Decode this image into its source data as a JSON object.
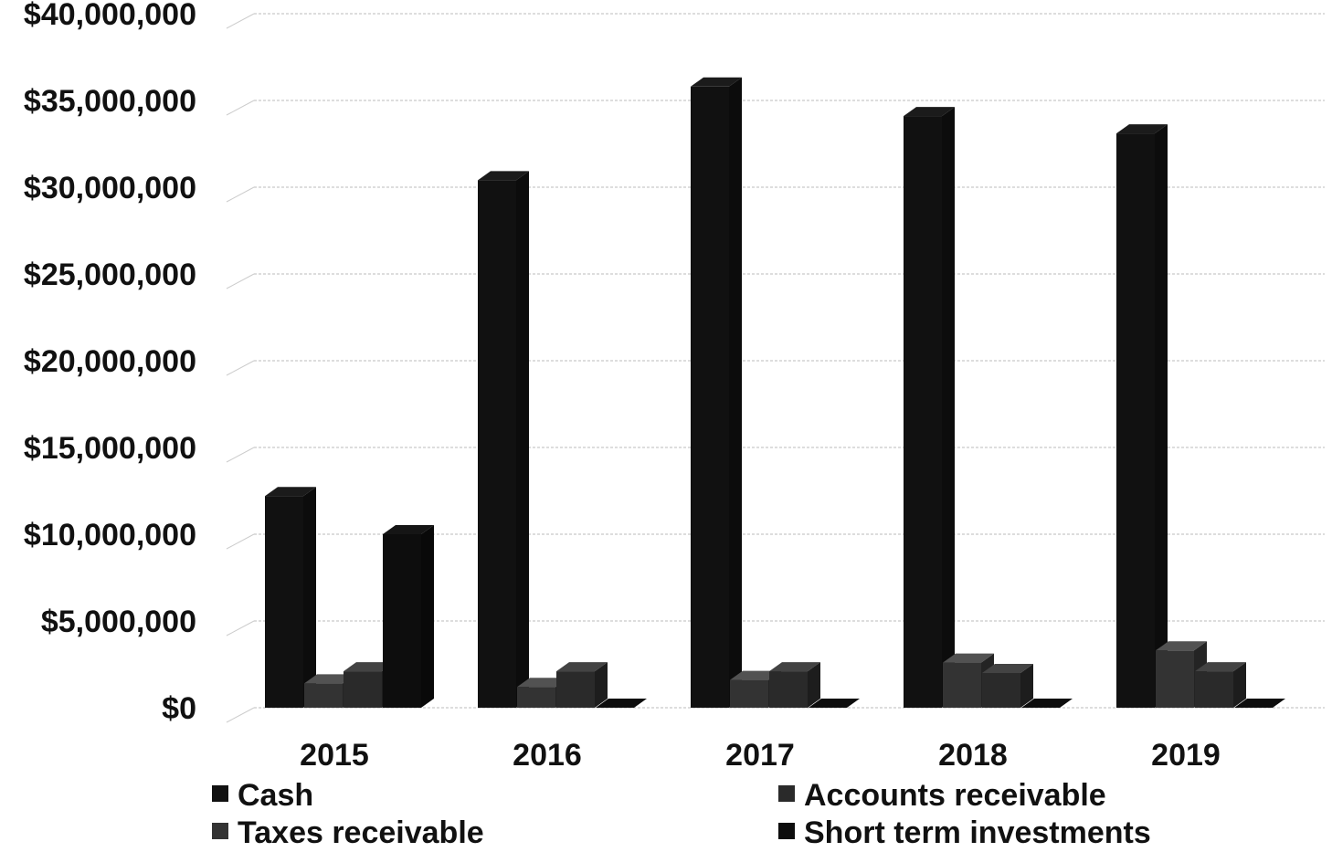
{
  "chart_data": {
    "type": "bar",
    "title": "",
    "xlabel": "",
    "ylabel": "",
    "categories": [
      "2015",
      "2016",
      "2017",
      "2018",
      "2019"
    ],
    "series": [
      {
        "name": "Cash",
        "color": "#111111",
        "values": [
          12200000,
          30400000,
          35800000,
          34100000,
          33100000
        ]
      },
      {
        "name": "Taxes receivable",
        "color": "#333333",
        "values": [
          1400000,
          1200000,
          1600000,
          2600000,
          3300000
        ]
      },
      {
        "name": "Accounts receivable",
        "color": "#2a2a2a",
        "values": [
          2100000,
          2100000,
          2100000,
          2000000,
          2100000
        ]
      },
      {
        "name": "Short term investments",
        "color": "#0d0d0d",
        "values": [
          10000000,
          0,
          0,
          0,
          0
        ]
      }
    ],
    "ylim": [
      0,
      40000000
    ],
    "yticks": [
      "$0",
      "$5,000,000",
      "$10,000,000",
      "$15,000,000",
      "$20,000,000",
      "$25,000,000",
      "$30,000,000",
      "$35,000,000",
      "$40,000,000"
    ],
    "grid": true,
    "legend_position": "bottom"
  }
}
